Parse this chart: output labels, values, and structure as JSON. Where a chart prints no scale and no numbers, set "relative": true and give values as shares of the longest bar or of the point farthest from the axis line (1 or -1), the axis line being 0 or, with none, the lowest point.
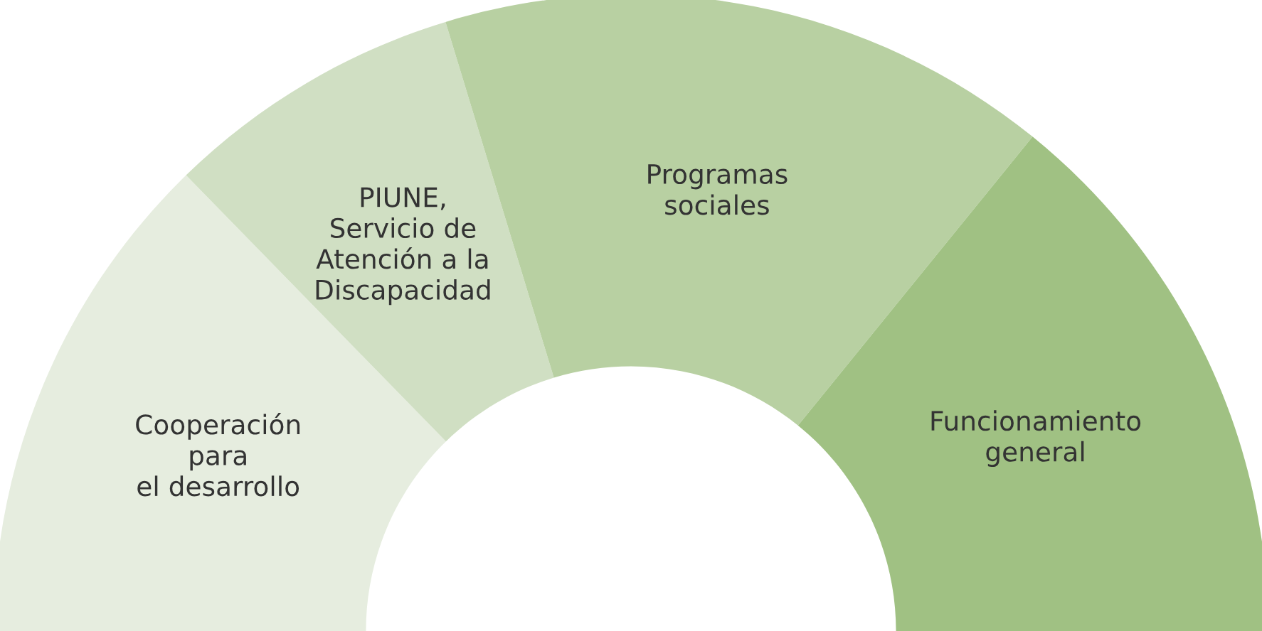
{
  "chart_data": {
    "type": "donut",
    "categories": [
      "Cooperación\npara\nel desarrollo",
      "PIUNE,\nServicio de\nAtención a la\nDiscapacidad",
      "Programas\nsociales",
      "Funcionamiento\ngeneral"
    ],
    "values": [
      25.4,
      15.2,
      31.1,
      28.3
    ],
    "colors": [
      "#e6eddf",
      "#d0dfc3",
      "#b8d0a2",
      "#a0c183"
    ],
    "relative": true
  }
}
